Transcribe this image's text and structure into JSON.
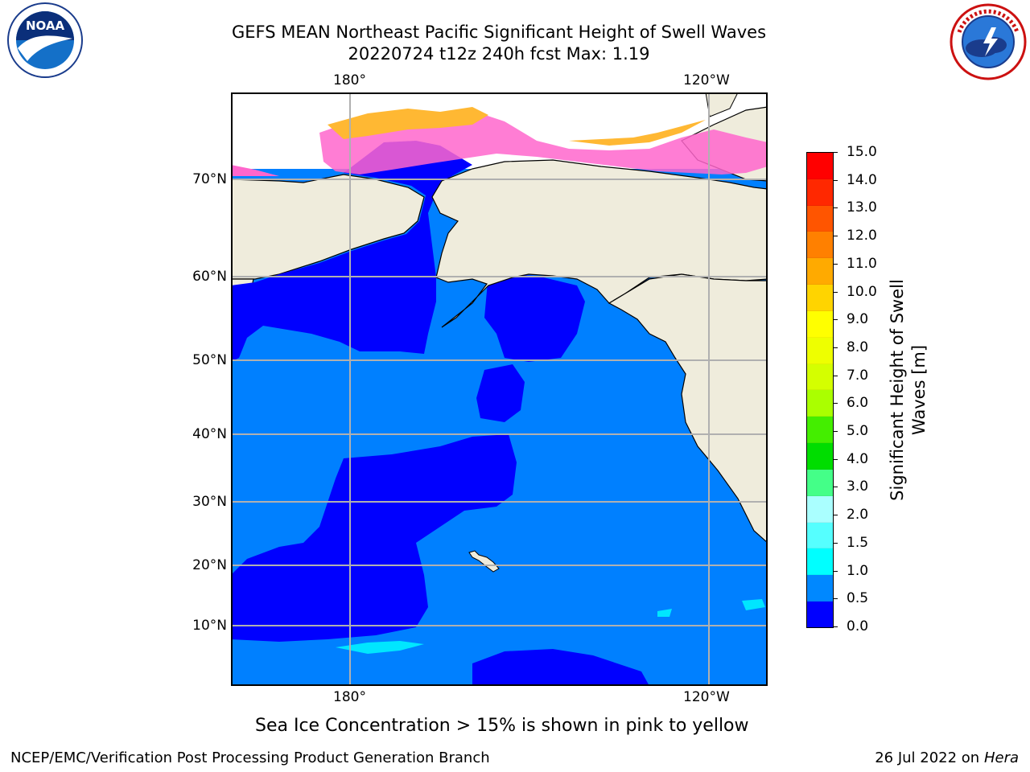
{
  "title": {
    "line1": "GEFS MEAN Northeast Pacific Significant Height of Swell Waves",
    "line2": "20220724 t12z 240h fcst   Max: 1.19"
  },
  "logos": {
    "noaa_text": "NOAA",
    "noaa_ring": "NATIONAL OCEANIC AND ATMOSPHERIC ADMINISTRATION · U.S. DEPARTMENT OF COMMERCE",
    "nws_ring": "NATIONAL WEATHER SERVICE"
  },
  "map": {
    "lon_labels": [
      "180°",
      "120°W"
    ],
    "lat_labels": [
      "70°N",
      "60°N",
      "50°N",
      "40°N",
      "30°N",
      "20°N",
      "10°N"
    ]
  },
  "colorbar": {
    "label_line1": "Significant Height of Swell",
    "label_line2": "Waves [m]",
    "ticks": [
      "15.0",
      "14.0",
      "13.0",
      "12.0",
      "11.0",
      "10.0",
      "9.0",
      "8.0",
      "7.0",
      "6.0",
      "5.0",
      "4.0",
      "3.0",
      "2.0",
      "1.5",
      "1.0",
      "0.5",
      "0.0"
    ],
    "colors": [
      "#ff0000",
      "#ff2800",
      "#ff5500",
      "#ff8000",
      "#ffaa00",
      "#ffd400",
      "#ffff00",
      "#eeff00",
      "#d4ff00",
      "#aaff00",
      "#44ee00",
      "#00dd00",
      "#44ff88",
      "#aaffff",
      "#55ffff",
      "#00ffff",
      "#0088ff",
      "#0000ff"
    ]
  },
  "note": "Sea Ice Concentration > 15% is shown in pink to yellow",
  "footer": {
    "left": "NCEP/EMC/Verification Post Processing Product Generation Branch",
    "date": "26 Jul 2022 on ",
    "host": "Hera"
  }
}
